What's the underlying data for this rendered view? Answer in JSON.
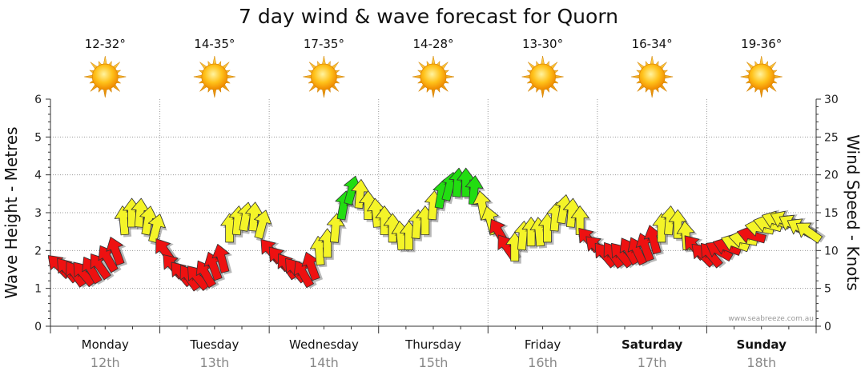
{
  "chart_data": {
    "type": "line",
    "title": "7 day wind & wave forecast for Quorn",
    "ylabel_left": "Wave Height - Metres",
    "ylabel_right": "Wind Speed - Knots",
    "ylim_left": [
      0,
      6
    ],
    "ylim_right": [
      0,
      30
    ],
    "yticks_left": [
      "0",
      "1",
      "2",
      "3",
      "4",
      "5",
      "6"
    ],
    "yticks_right": [
      "0",
      "5",
      "10",
      "15",
      "20",
      "25",
      "30"
    ],
    "grid": true,
    "watermark": "www.seabreeze.com.au",
    "days": [
      {
        "name": "Monday",
        "date": "12th",
        "temp": "12-32°",
        "bold": false
      },
      {
        "name": "Tuesday",
        "date": "13th",
        "temp": "14-35°",
        "bold": false
      },
      {
        "name": "Wednesday",
        "date": "14th",
        "temp": "17-35°",
        "bold": false
      },
      {
        "name": "Thursday",
        "date": "15th",
        "temp": "14-28°",
        "bold": false
      },
      {
        "name": "Friday",
        "date": "16th",
        "temp": "13-30°",
        "bold": false
      },
      {
        "name": "Saturday",
        "date": "17th",
        "temp": "16-34°",
        "bold": true
      },
      {
        "name": "Sunday",
        "date": "18th",
        "temp": "19-36°",
        "bold": true
      }
    ],
    "weather_icon": "sun-icon",
    "colors": {
      "low": "#ee1111",
      "mid": "#f4f428",
      "high": "#22dd11"
    },
    "wind_knots": [
      8,
      7.5,
      7,
      7,
      7.5,
      8,
      9,
      10,
      14,
      15,
      15,
      14,
      13,
      10,
      8,
      7,
      6.5,
      6.5,
      7,
      8,
      9,
      13,
      14,
      14.5,
      14.5,
      13.5,
      10,
      9,
      8,
      7.5,
      7,
      8,
      10,
      11,
      13,
      16,
      18,
      17.5,
      16,
      15,
      14,
      13,
      12,
      12,
      13.5,
      14,
      16,
      17.5,
      18.5,
      19,
      19,
      18,
      16,
      14,
      12.5,
      10.5,
      10.5,
      12,
      12.5,
      12.5,
      13,
      14.5,
      15.5,
      15,
      14,
      11.5,
      10.5,
      9.5,
      9.5,
      9.5,
      10,
      10,
      10.5,
      11.5,
      13,
      14,
      13.5,
      12,
      10.5,
      9.5,
      9.5,
      10,
      10.5,
      11,
      11.5,
      12,
      13,
      13.5,
      14,
      14,
      13.5,
      13,
      12.5
    ],
    "wind_colors": [
      "r",
      "r",
      "r",
      "r",
      "r",
      "r",
      "r",
      "r",
      "y",
      "y",
      "y",
      "y",
      "y",
      "r",
      "r",
      "r",
      "r",
      "r",
      "r",
      "r",
      "r",
      "y",
      "y",
      "y",
      "y",
      "y",
      "r",
      "r",
      "r",
      "r",
      "r",
      "r",
      "y",
      "y",
      "y",
      "g",
      "g",
      "y",
      "y",
      "y",
      "y",
      "y",
      "y",
      "y",
      "y",
      "y",
      "y",
      "g",
      "g",
      "g",
      "g",
      "g",
      "y",
      "y",
      "r",
      "r",
      "y",
      "y",
      "y",
      "y",
      "y",
      "y",
      "y",
      "y",
      "y",
      "r",
      "r",
      "r",
      "r",
      "r",
      "r",
      "r",
      "r",
      "r",
      "y",
      "y",
      "y",
      "y",
      "r",
      "r",
      "r",
      "r",
      "r",
      "y",
      "y",
      "r",
      "y",
      "y",
      "y",
      "y",
      "y",
      "y",
      "y"
    ],
    "wind_dir_deg": [
      135,
      140,
      145,
      140,
      150,
      145,
      150,
      160,
      175,
      180,
      185,
      190,
      195,
      145,
      140,
      140,
      145,
      140,
      150,
      160,
      165,
      180,
      185,
      190,
      185,
      195,
      140,
      140,
      145,
      140,
      150,
      160,
      175,
      180,
      185,
      190,
      195,
      185,
      180,
      175,
      180,
      180,
      175,
      180,
      185,
      180,
      185,
      190,
      195,
      185,
      180,
      185,
      170,
      165,
      150,
      145,
      180,
      185,
      180,
      175,
      180,
      185,
      190,
      185,
      180,
      140,
      135,
      140,
      145,
      140,
      150,
      155,
      160,
      165,
      180,
      185,
      180,
      175,
      140,
      135,
      140,
      120,
      110,
      110,
      100,
      105,
      100,
      105,
      110,
      115,
      120,
      120,
      125
    ]
  }
}
